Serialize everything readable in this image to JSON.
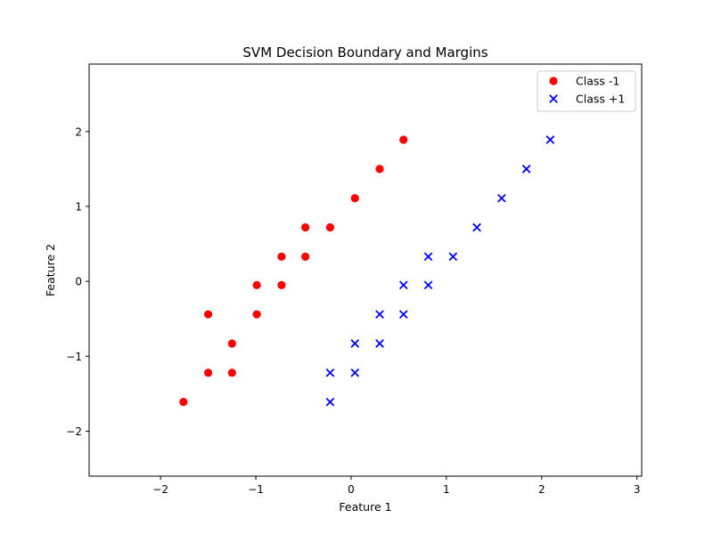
{
  "chart_data": {
    "type": "scatter",
    "title": "SVM Decision Boundary and Margins",
    "xlabel": "Feature 1",
    "ylabel": "Feature 2",
    "xlim": [
      -2.75,
      3.05
    ],
    "ylim": [
      -2.6,
      2.9
    ],
    "xticks": [
      -2,
      -1,
      0,
      1,
      2,
      3
    ],
    "yticks": [
      -2,
      -1,
      0,
      1,
      2
    ],
    "xtick_labels": [
      "−2",
      "−1",
      "0",
      "1",
      "2",
      "3"
    ],
    "ytick_labels": [
      "−2",
      "−1",
      "0",
      "1",
      "2"
    ],
    "grid": false,
    "legend_position": "top-right",
    "series": [
      {
        "name": "Class -1",
        "marker": "circle",
        "color": "#ff0000",
        "points": [
          [
            -1.76,
            -1.61
          ],
          [
            -1.5,
            -1.22
          ],
          [
            -1.25,
            -1.22
          ],
          [
            -1.5,
            -0.44
          ],
          [
            -1.25,
            -0.83
          ],
          [
            -0.99,
            -0.05
          ],
          [
            -0.99,
            -0.44
          ],
          [
            -0.73,
            0.33
          ],
          [
            -0.73,
            -0.05
          ],
          [
            -0.48,
            0.72
          ],
          [
            -0.48,
            0.33
          ],
          [
            -0.22,
            0.72
          ],
          [
            0.04,
            1.11
          ],
          [
            0.3,
            1.5
          ],
          [
            0.55,
            1.89
          ]
        ]
      },
      {
        "name": "Class +1",
        "marker": "x",
        "color": "#0000ff",
        "points": [
          [
            -0.22,
            -1.61
          ],
          [
            -0.22,
            -1.22
          ],
          [
            0.04,
            -1.22
          ],
          [
            0.04,
            -0.83
          ],
          [
            0.3,
            -0.83
          ],
          [
            0.3,
            -0.44
          ],
          [
            0.55,
            -0.44
          ],
          [
            0.55,
            -0.05
          ],
          [
            0.81,
            -0.05
          ],
          [
            0.81,
            0.33
          ],
          [
            1.07,
            0.33
          ],
          [
            1.32,
            0.72
          ],
          [
            1.58,
            1.11
          ],
          [
            1.84,
            1.5
          ],
          [
            2.09,
            1.89
          ]
        ]
      }
    ]
  }
}
